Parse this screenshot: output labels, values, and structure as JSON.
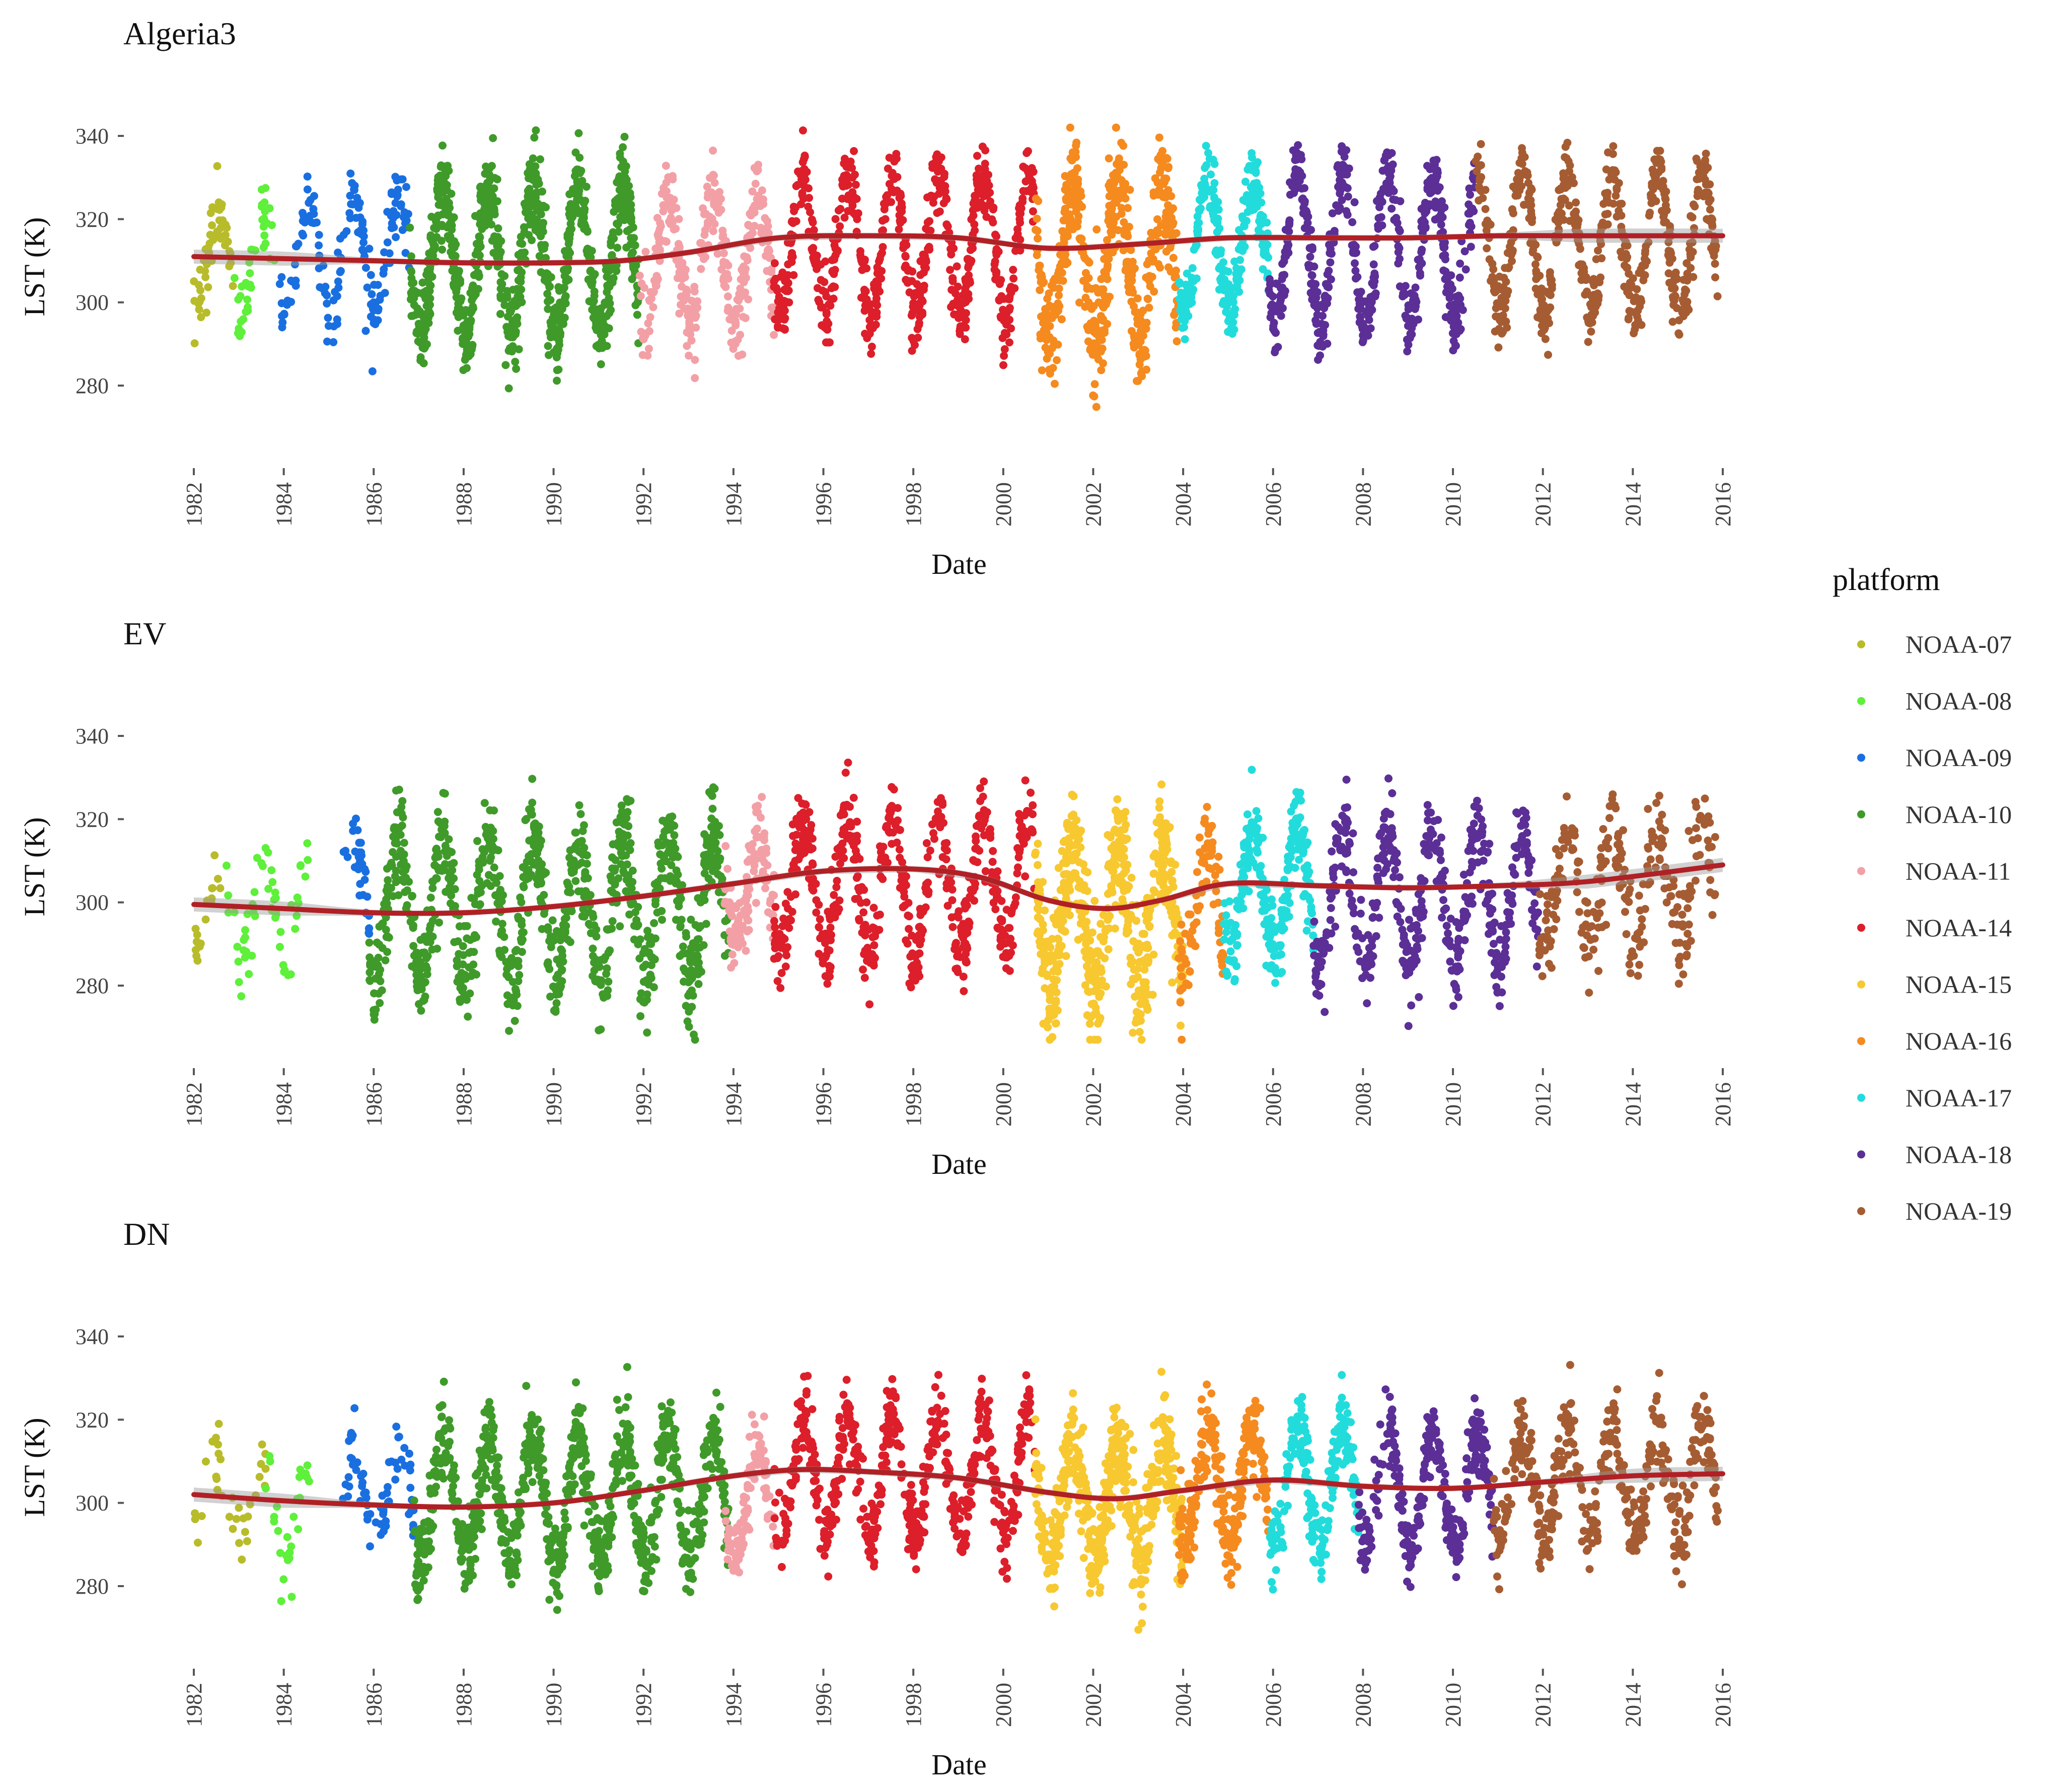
{
  "chart_data": {
    "type": "scatter",
    "x_label": "Date",
    "y_label": "LST (K)",
    "y_ticks": [
      280,
      300,
      320,
      340
    ],
    "ylim": [
      266,
      344
    ],
    "x_ticks": [
      1982,
      1984,
      1986,
      1988,
      1990,
      1992,
      1994,
      1996,
      1998,
      2000,
      2002,
      2004,
      2006,
      2008,
      2010,
      2012,
      2014,
      2016
    ],
    "xlim": [
      1981.8,
      2016.2
    ],
    "legend": {
      "title": "platform",
      "position": "right",
      "entries": [
        {
          "name": "NOAA-07",
          "color": "#b8bc2a"
        },
        {
          "name": "NOAA-08",
          "color": "#5ef03a"
        },
        {
          "name": "NOAA-09",
          "color": "#1a6fe0"
        },
        {
          "name": "NOAA-10",
          "color": "#3f9a2a"
        },
        {
          "name": "NOAA-11",
          "color": "#f2a0a6"
        },
        {
          "name": "NOAA-14",
          "color": "#dc1f2a"
        },
        {
          "name": "NOAA-15",
          "color": "#f7c830"
        },
        {
          "name": "NOAA-16",
          "color": "#f58a1f"
        },
        {
          "name": "NOAA-17",
          "color": "#22dcdc"
        },
        {
          "name": "NOAA-18",
          "color": "#5b2f96"
        },
        {
          "name": "NOAA-19",
          "color": "#a65c32"
        }
      ]
    },
    "trend_color": "#b02025",
    "panels": [
      {
        "title": "Algeria3",
        "segments": [
          {
            "platform": "NOAA-07",
            "start": 1982.0,
            "end": 1982.9,
            "mean": 311,
            "amp": 10,
            "noise": 4,
            "n": 55
          },
          {
            "platform": "NOAA-08",
            "start": 1982.9,
            "end": 1983.8,
            "mean": 309,
            "amp": 12,
            "noise": 4,
            "n": 40
          },
          {
            "platform": "NOAA-09",
            "start": 1983.9,
            "end": 1986.8,
            "mean": 312,
            "amp": 14,
            "noise": 4,
            "n": 160
          },
          {
            "platform": "NOAA-10",
            "start": 1986.8,
            "end": 1991.9,
            "mean": 310,
            "amp": 18,
            "noise": 5,
            "n": 900
          },
          {
            "platform": "NOAA-11",
            "start": 1991.9,
            "end": 1994.9,
            "mean": 310,
            "amp": 15,
            "noise": 5,
            "n": 330
          },
          {
            "platform": "NOAA-14",
            "start": 1994.9,
            "end": 2000.7,
            "mean": 314,
            "amp": 17,
            "noise": 4,
            "n": 620
          },
          {
            "platform": "NOAA-16",
            "start": 2000.7,
            "end": 2003.9,
            "mean": 309,
            "amp": 18,
            "noise": 7,
            "n": 520
          },
          {
            "platform": "NOAA-17",
            "start": 2003.9,
            "end": 2005.9,
            "mean": 314,
            "amp": 16,
            "noise": 4,
            "n": 260
          },
          {
            "platform": "NOAA-18",
            "start": 2005.9,
            "end": 2010.5,
            "mean": 313,
            "amp": 18,
            "noise": 4,
            "n": 520
          },
          {
            "platform": "NOAA-19",
            "start": 2010.5,
            "end": 2015.9,
            "mean": 314,
            "amp": 17,
            "noise": 4,
            "n": 560
          }
        ],
        "trend": {
          "x": [
            1982,
            1984,
            1986,
            1988,
            1990,
            1991.5,
            1993,
            1995,
            1997,
            1999,
            2001,
            2003,
            2005,
            2007,
            2009,
            2011,
            2013,
            2016
          ],
          "y": [
            311,
            310.5,
            310,
            309.5,
            309.5,
            310,
            312,
            315.5,
            316,
            315.5,
            313,
            314,
            315.5,
            315.5,
            315.5,
            316,
            316,
            316
          ]
        }
      },
      {
        "title": "EV",
        "segments": [
          {
            "platform": "NOAA-07",
            "start": 1982.0,
            "end": 1982.6,
            "mean": 298,
            "amp": 7,
            "noise": 3,
            "n": 18
          },
          {
            "platform": "NOAA-08",
            "start": 1982.6,
            "end": 1984.6,
            "mean": 297,
            "amp": 13,
            "noise": 4,
            "n": 55
          },
          {
            "platform": "NOAA-09",
            "start": 1985.3,
            "end": 1985.9,
            "mean": 303,
            "amp": 12,
            "noise": 4,
            "n": 35
          },
          {
            "platform": "NOAA-10",
            "start": 1985.9,
            "end": 1993.9,
            "mean": 298,
            "amp": 18,
            "noise": 6,
            "n": 950
          },
          {
            "platform": "NOAA-11",
            "start": 1993.8,
            "end": 1994.9,
            "mean": 303,
            "amp": 13,
            "noise": 5,
            "n": 120
          },
          {
            "platform": "NOAA-14",
            "start": 1994.9,
            "end": 2000.7,
            "mean": 304,
            "amp": 16,
            "noise": 5,
            "n": 540
          },
          {
            "platform": "NOAA-15",
            "start": 2000.7,
            "end": 2004.0,
            "mean": 297,
            "amp": 16,
            "noise": 7,
            "n": 560
          },
          {
            "platform": "NOAA-16",
            "start": 2003.9,
            "end": 2004.9,
            "mean": 298,
            "amp": 15,
            "noise": 6,
            "n": 90
          },
          {
            "platform": "NOAA-17",
            "start": 2004.9,
            "end": 2006.9,
            "mean": 303,
            "amp": 15,
            "noise": 5,
            "n": 260
          },
          {
            "platform": "NOAA-18",
            "start": 2006.9,
            "end": 2011.9,
            "mean": 301,
            "amp": 17,
            "noise": 5,
            "n": 460
          },
          {
            "platform": "NOAA-19",
            "start": 2011.9,
            "end": 2015.9,
            "mean": 304,
            "amp": 13,
            "noise": 6,
            "n": 260
          }
        ],
        "trend": {
          "x": [
            1982,
            1984,
            1986,
            1988,
            1990,
            1992,
            1994,
            1996,
            1998,
            1999.5,
            2001,
            2002.3,
            2003.5,
            2005,
            2007,
            2009,
            2011,
            2013,
            2016
          ],
          "y": [
            299.5,
            298.5,
            297.5,
            297.5,
            299,
            301.5,
            304.5,
            307.5,
            308,
            306,
            300.5,
            298.5,
            300.5,
            304.5,
            304,
            303.5,
            304,
            305,
            309
          ]
        }
      },
      {
        "title": "DN",
        "segments": [
          {
            "platform": "NOAA-07",
            "start": 1982.0,
            "end": 1983.6,
            "mean": 302,
            "amp": 8,
            "noise": 4,
            "n": 35
          },
          {
            "platform": "NOAA-08",
            "start": 1983.6,
            "end": 1984.6,
            "mean": 297,
            "amp": 12,
            "noise": 4,
            "n": 28
          },
          {
            "platform": "NOAA-09",
            "start": 1985.3,
            "end": 1986.9,
            "mean": 302,
            "amp": 10,
            "noise": 4,
            "n": 70
          },
          {
            "platform": "NOAA-10",
            "start": 1986.9,
            "end": 1993.9,
            "mean": 301,
            "amp": 15,
            "noise": 5,
            "n": 900
          },
          {
            "platform": "NOAA-11",
            "start": 1993.8,
            "end": 1994.9,
            "mean": 300,
            "amp": 12,
            "noise": 4,
            "n": 110
          },
          {
            "platform": "NOAA-14",
            "start": 1994.9,
            "end": 2000.7,
            "mean": 306,
            "amp": 14,
            "noise": 4,
            "n": 560
          },
          {
            "platform": "NOAA-15",
            "start": 2000.7,
            "end": 2004.0,
            "mean": 301,
            "amp": 14,
            "noise": 6,
            "n": 500
          },
          {
            "platform": "NOAA-16",
            "start": 2003.9,
            "end": 2005.9,
            "mean": 305,
            "amp": 14,
            "noise": 5,
            "n": 260
          },
          {
            "platform": "NOAA-17",
            "start": 2005.9,
            "end": 2007.9,
            "mean": 304,
            "amp": 14,
            "noise": 5,
            "n": 230
          },
          {
            "platform": "NOAA-18",
            "start": 2007.9,
            "end": 2010.9,
            "mean": 303,
            "amp": 14,
            "noise": 4,
            "n": 300
          },
          {
            "platform": "NOAA-19",
            "start": 2010.9,
            "end": 2015.9,
            "mean": 305,
            "amp": 14,
            "noise": 5,
            "n": 420
          }
        ],
        "trend": {
          "x": [
            1982,
            1984,
            1986,
            1988,
            1990,
            1992,
            1994,
            1995.5,
            1997,
            1999,
            2001,
            2002.5,
            2004,
            2006,
            2008,
            2010,
            2012,
            2014,
            2016
          ],
          "y": [
            302,
            300.5,
            299.5,
            299,
            300,
            303,
            306.5,
            308,
            307.5,
            306,
            302.5,
            301,
            303,
            305.5,
            304,
            303.5,
            305,
            306.5,
            307
          ]
        }
      }
    ]
  }
}
